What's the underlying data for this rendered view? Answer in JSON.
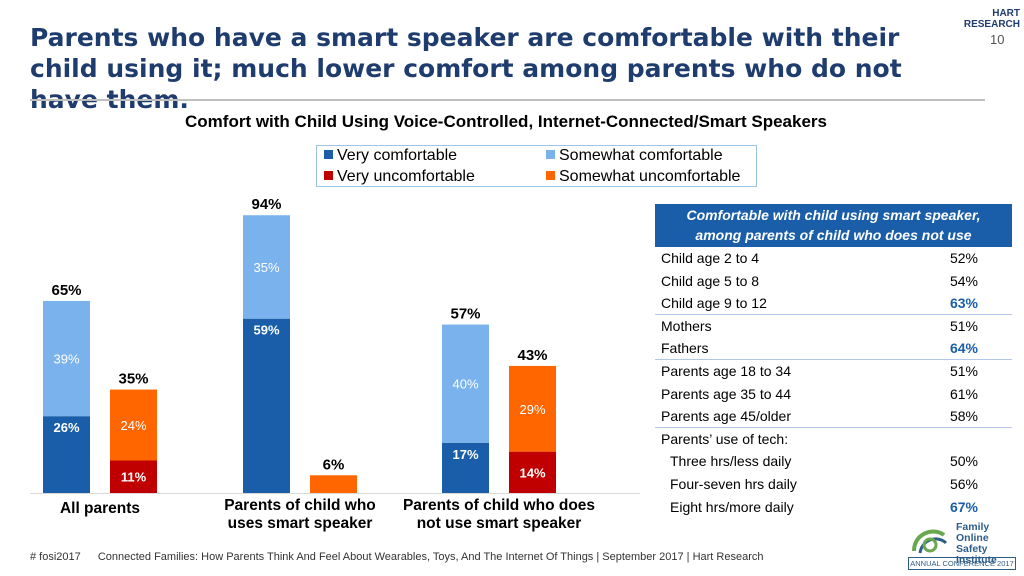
{
  "slide": {
    "title": "Parents who have a smart speaker are comfortable with their child using it; much lower comfort among parents who do not have them.",
    "page_number": "10",
    "logo_line1": "HART",
    "logo_line2": "RESEARCH"
  },
  "colors": {
    "very_comfortable": "#1a5ea9",
    "somewhat_comfortable": "#7ab2ee",
    "very_uncomfortable": "#c00000",
    "somewhat_uncomfortable": "#ff6600",
    "accent_blue": "#1a5ea9",
    "title_blue": "#1f3c6e"
  },
  "chart_data": {
    "type": "bar",
    "title": "Comfort with Child Using Voice-Controlled, Internet-Connected/Smart Speakers",
    "stacked": true,
    "value_unit": "%",
    "ylim": [
      0,
      100
    ],
    "grid": false,
    "legend": {
      "position": "top-center",
      "items": [
        "Very comfortable",
        "Somewhat comfortable",
        "Very uncomfortable",
        "Somewhat uncomfortable"
      ]
    },
    "groups": [
      {
        "label": "All parents",
        "comfortable": {
          "total_label": "65%",
          "very": 26,
          "somewhat": 39
        },
        "uncomfortable": {
          "total_label": "35%",
          "very": 11,
          "somewhat": 24
        }
      },
      {
        "label": "Parents of child who uses smart speaker",
        "comfortable": {
          "total_label": "94%",
          "very": 59,
          "somewhat": 35
        },
        "uncomfortable": {
          "total_label": "6%",
          "very": 0,
          "somewhat": 6
        }
      },
      {
        "label": "Parents of child who does not use smart speaker",
        "comfortable": {
          "total_label": "57%",
          "very": 17,
          "somewhat": 40
        },
        "uncomfortable": {
          "total_label": "43%",
          "very": 14,
          "somewhat": 29
        }
      }
    ],
    "group_label_lines": [
      [
        "All parents"
      ],
      [
        "Parents of child who",
        "uses smart speaker"
      ],
      [
        "Parents of child who does",
        "not use smart speaker"
      ]
    ]
  },
  "side_table": {
    "header_line1": "Comfortable with child using smart speaker,",
    "header_line2": "among parents of child who does not use",
    "rows": [
      {
        "label": "Child age 2 to 4",
        "value": "52%",
        "highlight": false,
        "indent": false
      },
      {
        "label": "Child age 5 to 8",
        "value": "54%",
        "highlight": false,
        "indent": false
      },
      {
        "label": "Child age 9 to 12",
        "value": "63%",
        "highlight": true,
        "indent": false
      },
      {
        "label": "Mothers",
        "value": "51%",
        "highlight": false,
        "indent": false
      },
      {
        "label": "Fathers",
        "value": "64%",
        "highlight": true,
        "indent": false
      },
      {
        "label": "Parents age 18 to 34",
        "value": "51%",
        "highlight": false,
        "indent": false
      },
      {
        "label": "Parents age 35 to 44",
        "value": "61%",
        "highlight": false,
        "indent": false
      },
      {
        "label": "Parents age 45/older",
        "value": "58%",
        "highlight": false,
        "indent": false
      },
      {
        "label": "Parents’ use of tech:",
        "value": "",
        "highlight": false,
        "indent": false
      },
      {
        "label": "Three hrs/less daily",
        "value": "50%",
        "highlight": false,
        "indent": true
      },
      {
        "label": "Four-seven hrs daily",
        "value": "56%",
        "highlight": false,
        "indent": true
      },
      {
        "label": "Eight hrs/more daily",
        "value": "67%",
        "highlight": true,
        "indent": true
      }
    ]
  },
  "footer": {
    "hashtag": "# fosi2017",
    "source": "Connected Families: How Parents Think And Feel About Wearables, Toys, And The Internet Of Things | September 2017 | Hart Research"
  },
  "fosi_logo": {
    "line1": "Family",
    "line2": "Online Safety",
    "line3": "Institute",
    "badge": "ANNUAL CONFERENCE 2017"
  }
}
